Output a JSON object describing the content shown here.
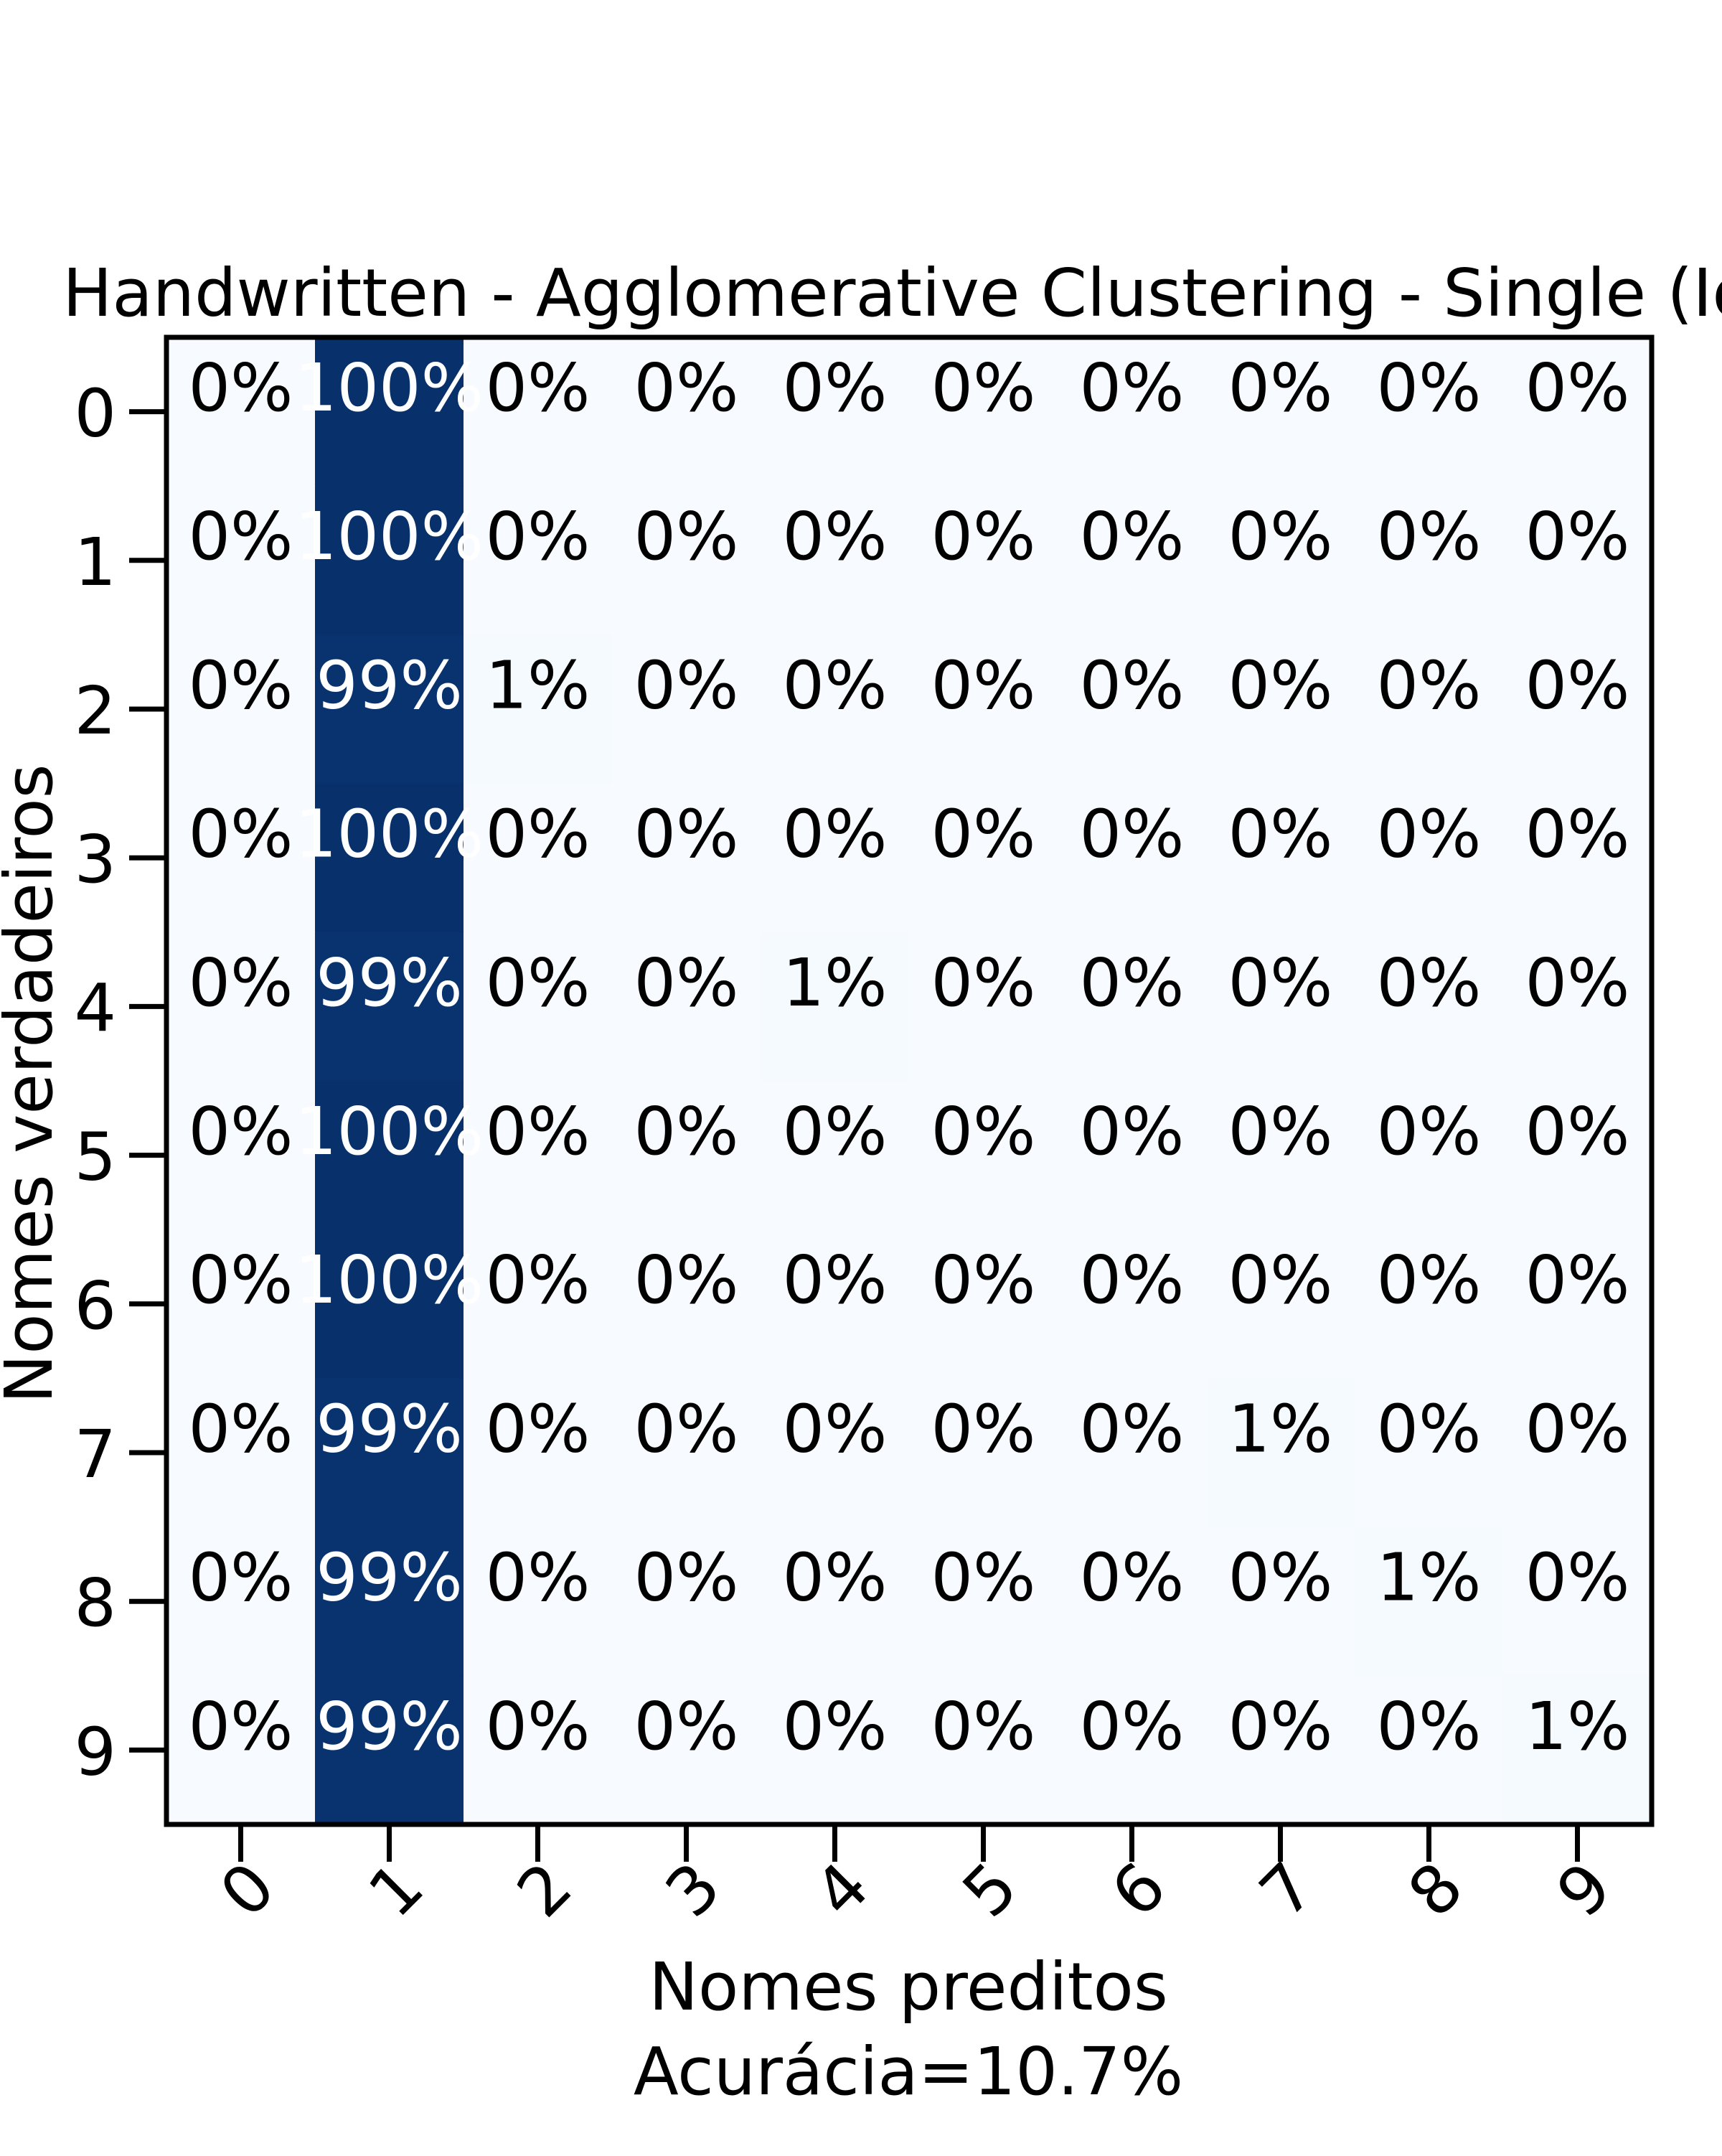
{
  "chart_data": {
    "type": "heatmap",
    "title": "Handwritten - Agglomerative Clustering - Single (Id",
    "xlabel": "Nomes preditos",
    "xlabel_sub": "Acurácia=10.7%",
    "ylabel": "Nomes verdadeiros",
    "x_categories": [
      "0",
      "1",
      "2",
      "3",
      "4",
      "5",
      "6",
      "7",
      "8",
      "9"
    ],
    "y_categories": [
      "0",
      "1",
      "2",
      "3",
      "4",
      "5",
      "6",
      "7",
      "8",
      "9"
    ],
    "values": [
      [
        0,
        100,
        0,
        0,
        0,
        0,
        0,
        0,
        0,
        0
      ],
      [
        0,
        100,
        0,
        0,
        0,
        0,
        0,
        0,
        0,
        0
      ],
      [
        0,
        99,
        1,
        0,
        0,
        0,
        0,
        0,
        0,
        0
      ],
      [
        0,
        100,
        0,
        0,
        0,
        0,
        0,
        0,
        0,
        0
      ],
      [
        0,
        99,
        0,
        0,
        1,
        0,
        0,
        0,
        0,
        0
      ],
      [
        0,
        100,
        0,
        0,
        0,
        0,
        0,
        0,
        0,
        0
      ],
      [
        0,
        100,
        0,
        0,
        0,
        0,
        0,
        0,
        0,
        0
      ],
      [
        0,
        99,
        0,
        0,
        0,
        0,
        0,
        1,
        0,
        0
      ],
      [
        0,
        99,
        0,
        0,
        0,
        0,
        0,
        0,
        1,
        0
      ],
      [
        0,
        99,
        0,
        0,
        0,
        0,
        0,
        0,
        0,
        1
      ]
    ],
    "cell_labels": [
      [
        "0%",
        "100%",
        "0%",
        "0%",
        "0%",
        "0%",
        "0%",
        "0%",
        "0%",
        "0%"
      ],
      [
        "0%",
        "100%",
        "0%",
        "0%",
        "0%",
        "0%",
        "0%",
        "0%",
        "0%",
        "0%"
      ],
      [
        "0%",
        "99%",
        "1%",
        "0%",
        "0%",
        "0%",
        "0%",
        "0%",
        "0%",
        "0%"
      ],
      [
        "0%",
        "100%",
        "0%",
        "0%",
        "0%",
        "0%",
        "0%",
        "0%",
        "0%",
        "0%"
      ],
      [
        "0%",
        "99%",
        "0%",
        "0%",
        "1%",
        "0%",
        "0%",
        "0%",
        "0%",
        "0%"
      ],
      [
        "0%",
        "100%",
        "0%",
        "0%",
        "0%",
        "0%",
        "0%",
        "0%",
        "0%",
        "0%"
      ],
      [
        "0%",
        "100%",
        "0%",
        "0%",
        "0%",
        "0%",
        "0%",
        "0%",
        "0%",
        "0%"
      ],
      [
        "0%",
        "99%",
        "0%",
        "0%",
        "0%",
        "0%",
        "0%",
        "1%",
        "0%",
        "0%"
      ],
      [
        "0%",
        "99%",
        "0%",
        "0%",
        "0%",
        "0%",
        "0%",
        "0%",
        "1%",
        "0%"
      ],
      [
        "0%",
        "99%",
        "0%",
        "0%",
        "0%",
        "0%",
        "0%",
        "0%",
        "0%",
        "1%"
      ]
    ],
    "colormap": "Blues",
    "color_low": "#f7fbff",
    "color_high": "#08306b",
    "grid": false,
    "legend": "none"
  }
}
